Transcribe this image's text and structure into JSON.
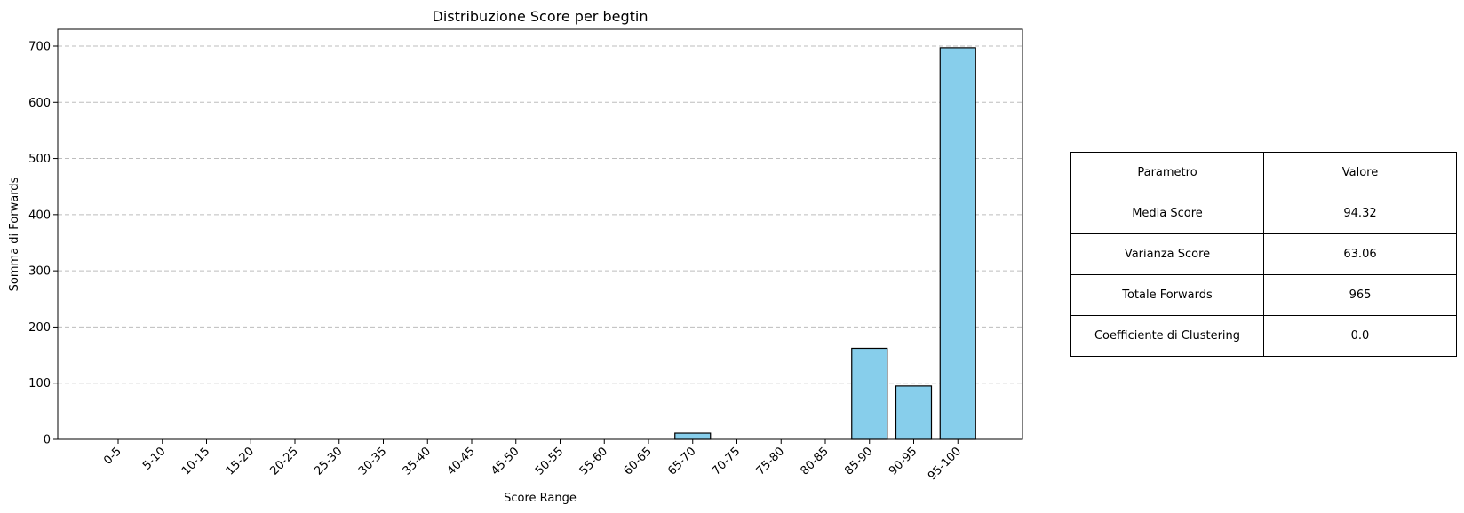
{
  "chart_data": {
    "type": "bar",
    "title": "Distribuzione Score per begtin",
    "xlabel": "Score Range",
    "ylabel": "Somma di Forwards",
    "categories": [
      "0-5",
      "5-10",
      "10-15",
      "15-20",
      "20-25",
      "25-30",
      "30-35",
      "35-40",
      "40-45",
      "45-50",
      "50-55",
      "55-60",
      "60-65",
      "65-70",
      "70-75",
      "75-80",
      "80-85",
      "85-90",
      "90-95",
      "95-100"
    ],
    "values": [
      0,
      0,
      0,
      0,
      0,
      0,
      0,
      0,
      0,
      0,
      0,
      0,
      0,
      11,
      0,
      0,
      0,
      162,
      95,
      697
    ],
    "ylim": [
      0,
      730
    ],
    "yticks": [
      0,
      100,
      200,
      300,
      400,
      500,
      600,
      700
    ],
    "grid": "y-dashed",
    "bar_color": "#87ceeb",
    "edge_color": "#000000"
  },
  "table": {
    "header": [
      "Parametro",
      "Valore"
    ],
    "rows": [
      [
        "Media Score",
        "94.32"
      ],
      [
        "Varianza Score",
        "63.06"
      ],
      [
        "Totale Forwards",
        "965"
      ],
      [
        "Coefficiente di Clustering",
        "0.0"
      ]
    ]
  }
}
